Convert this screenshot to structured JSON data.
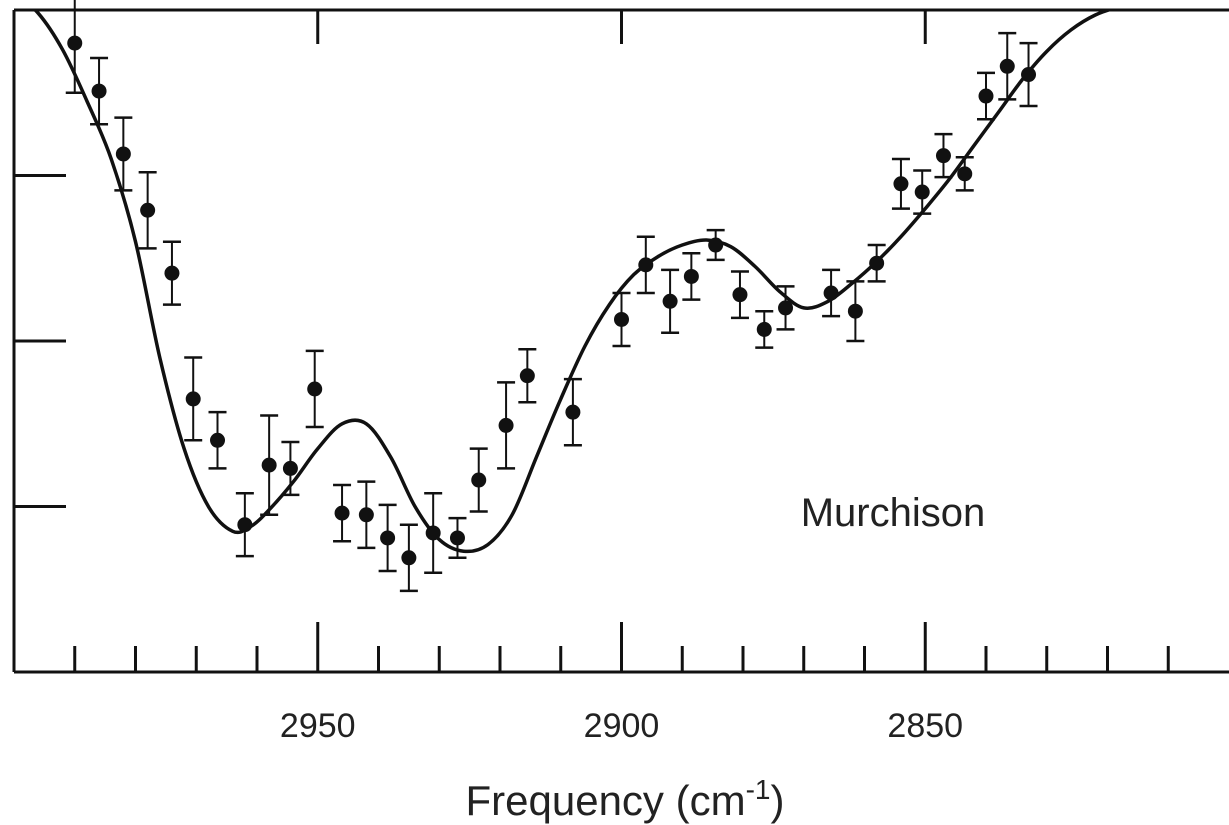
{
  "chart_data": {
    "type": "scatter",
    "xlabel": "Frequency (cm",
    "xlabel_sup": "-1",
    "xlabel_close": ")",
    "annotation": "Murchison",
    "x_reversed": true,
    "xlim": [
      3000,
      2800
    ],
    "ylim": [
      0,
      4
    ],
    "x_tick_labels": [
      "2950",
      "2900",
      "2850"
    ],
    "x_major_ticks": [
      2950,
      2900,
      2850
    ],
    "x_minor_step": 10,
    "y_ticks": [
      1,
      2,
      3
    ],
    "series": [
      {
        "points": [
          {
            "x": 2990.0,
            "y": 3.8,
            "err": 0.3
          },
          {
            "x": 2986.0,
            "y": 3.51,
            "err": 0.2
          },
          {
            "x": 2982.0,
            "y": 3.13,
            "err": 0.22
          },
          {
            "x": 2978.0,
            "y": 2.79,
            "err": 0.23
          },
          {
            "x": 2974.0,
            "y": 2.41,
            "err": 0.19
          },
          {
            "x": 2970.5,
            "y": 1.65,
            "err": 0.25
          },
          {
            "x": 2966.5,
            "y": 1.4,
            "err": 0.17
          },
          {
            "x": 2962.0,
            "y": 0.89,
            "err": 0.19
          },
          {
            "x": 2958.0,
            "y": 1.25,
            "err": 0.3
          },
          {
            "x": 2954.5,
            "y": 1.23,
            "err": 0.16
          },
          {
            "x": 2950.5,
            "y": 1.71,
            "err": 0.23
          },
          {
            "x": 2946.0,
            "y": 0.96,
            "err": 0.17
          },
          {
            "x": 2942.0,
            "y": 0.95,
            "err": 0.2
          },
          {
            "x": 2938.5,
            "y": 0.81,
            "err": 0.2
          },
          {
            "x": 2935.0,
            "y": 0.69,
            "err": 0.2
          },
          {
            "x": 2931.0,
            "y": 0.84,
            "err": 0.24
          },
          {
            "x": 2927.0,
            "y": 0.81,
            "err": 0.12
          },
          {
            "x": 2923.5,
            "y": 1.16,
            "err": 0.19
          },
          {
            "x": 2919.0,
            "y": 1.49,
            "err": 0.26
          },
          {
            "x": 2915.5,
            "y": 1.79,
            "err": 0.16
          },
          {
            "x": 2908.0,
            "y": 1.57,
            "err": 0.2
          },
          {
            "x": 2900.0,
            "y": 2.13,
            "err": 0.16
          },
          {
            "x": 2896.0,
            "y": 2.46,
            "err": 0.17
          },
          {
            "x": 2892.0,
            "y": 2.24,
            "err": 0.19
          },
          {
            "x": 2888.5,
            "y": 2.39,
            "err": 0.14
          },
          {
            "x": 2884.5,
            "y": 2.58,
            "err": 0.09
          },
          {
            "x": 2880.5,
            "y": 2.28,
            "err": 0.14
          },
          {
            "x": 2876.5,
            "y": 2.07,
            "err": 0.11
          },
          {
            "x": 2873.0,
            "y": 2.2,
            "err": 0.13
          },
          {
            "x": 2865.5,
            "y": 2.29,
            "err": 0.14
          },
          {
            "x": 2861.5,
            "y": 2.18,
            "err": 0.18
          },
          {
            "x": 2858.0,
            "y": 2.47,
            "err": 0.11
          },
          {
            "x": 2854.0,
            "y": 2.95,
            "err": 0.15
          },
          {
            "x": 2850.5,
            "y": 2.9,
            "err": 0.13
          },
          {
            "x": 2847.0,
            "y": 3.12,
            "err": 0.13
          },
          {
            "x": 2843.5,
            "y": 3.01,
            "err": 0.1
          },
          {
            "x": 2840.0,
            "y": 3.48,
            "err": 0.14
          },
          {
            "x": 2836.5,
            "y": 3.66,
            "err": 0.2
          },
          {
            "x": 2833.0,
            "y": 3.61,
            "err": 0.19
          }
        ]
      }
    ],
    "fit_curve": {
      "x": [
        3000,
        2996,
        2992,
        2988,
        2984,
        2980,
        2976,
        2972,
        2968,
        2964,
        2961,
        2958,
        2954,
        2950,
        2946,
        2942,
        2938,
        2934,
        2930,
        2926,
        2922,
        2918,
        2914,
        2910,
        2906,
        2902,
        2898,
        2894,
        2890,
        2886,
        2882,
        2878,
        2874,
        2870,
        2866,
        2862,
        2858,
        2854,
        2850,
        2846,
        2842,
        2838,
        2834,
        2830,
        2826,
        2822,
        2818,
        2814,
        2810,
        2800
      ],
      "y": [
        4.1,
        3.98,
        3.76,
        3.45,
        3.1,
        2.6,
        1.9,
        1.35,
        1.0,
        0.85,
        0.88,
        0.98,
        1.15,
        1.35,
        1.5,
        1.5,
        1.3,
        1.0,
        0.8,
        0.73,
        0.77,
        0.95,
        1.3,
        1.65,
        1.97,
        2.22,
        2.4,
        2.51,
        2.58,
        2.61,
        2.57,
        2.45,
        2.3,
        2.2,
        2.24,
        2.35,
        2.48,
        2.63,
        2.8,
        2.98,
        3.18,
        3.38,
        3.58,
        3.75,
        3.88,
        3.97,
        4.02,
        4.05,
        4.05,
        4.05
      ]
    }
  }
}
